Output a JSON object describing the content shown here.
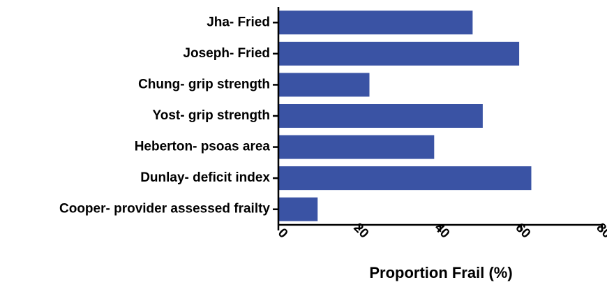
{
  "chart_data": {
    "type": "bar",
    "orientation": "horizontal",
    "categories": [
      "Jha- Fried",
      "Joseph- Fried",
      "Chung- grip strength",
      "Yost- grip strength",
      "Heberton- psoas area",
      "Dunlay- deficit index",
      "Cooper- provider assessed frailty"
    ],
    "values": [
      48,
      59.5,
      22.5,
      50.5,
      38.5,
      62.5,
      9.7
    ],
    "color": "#3a53a4",
    "xlabel": "Proportion Frail (%)",
    "xlim": [
      0,
      80
    ],
    "xticks": [
      0,
      20,
      40,
      60,
      80
    ]
  }
}
